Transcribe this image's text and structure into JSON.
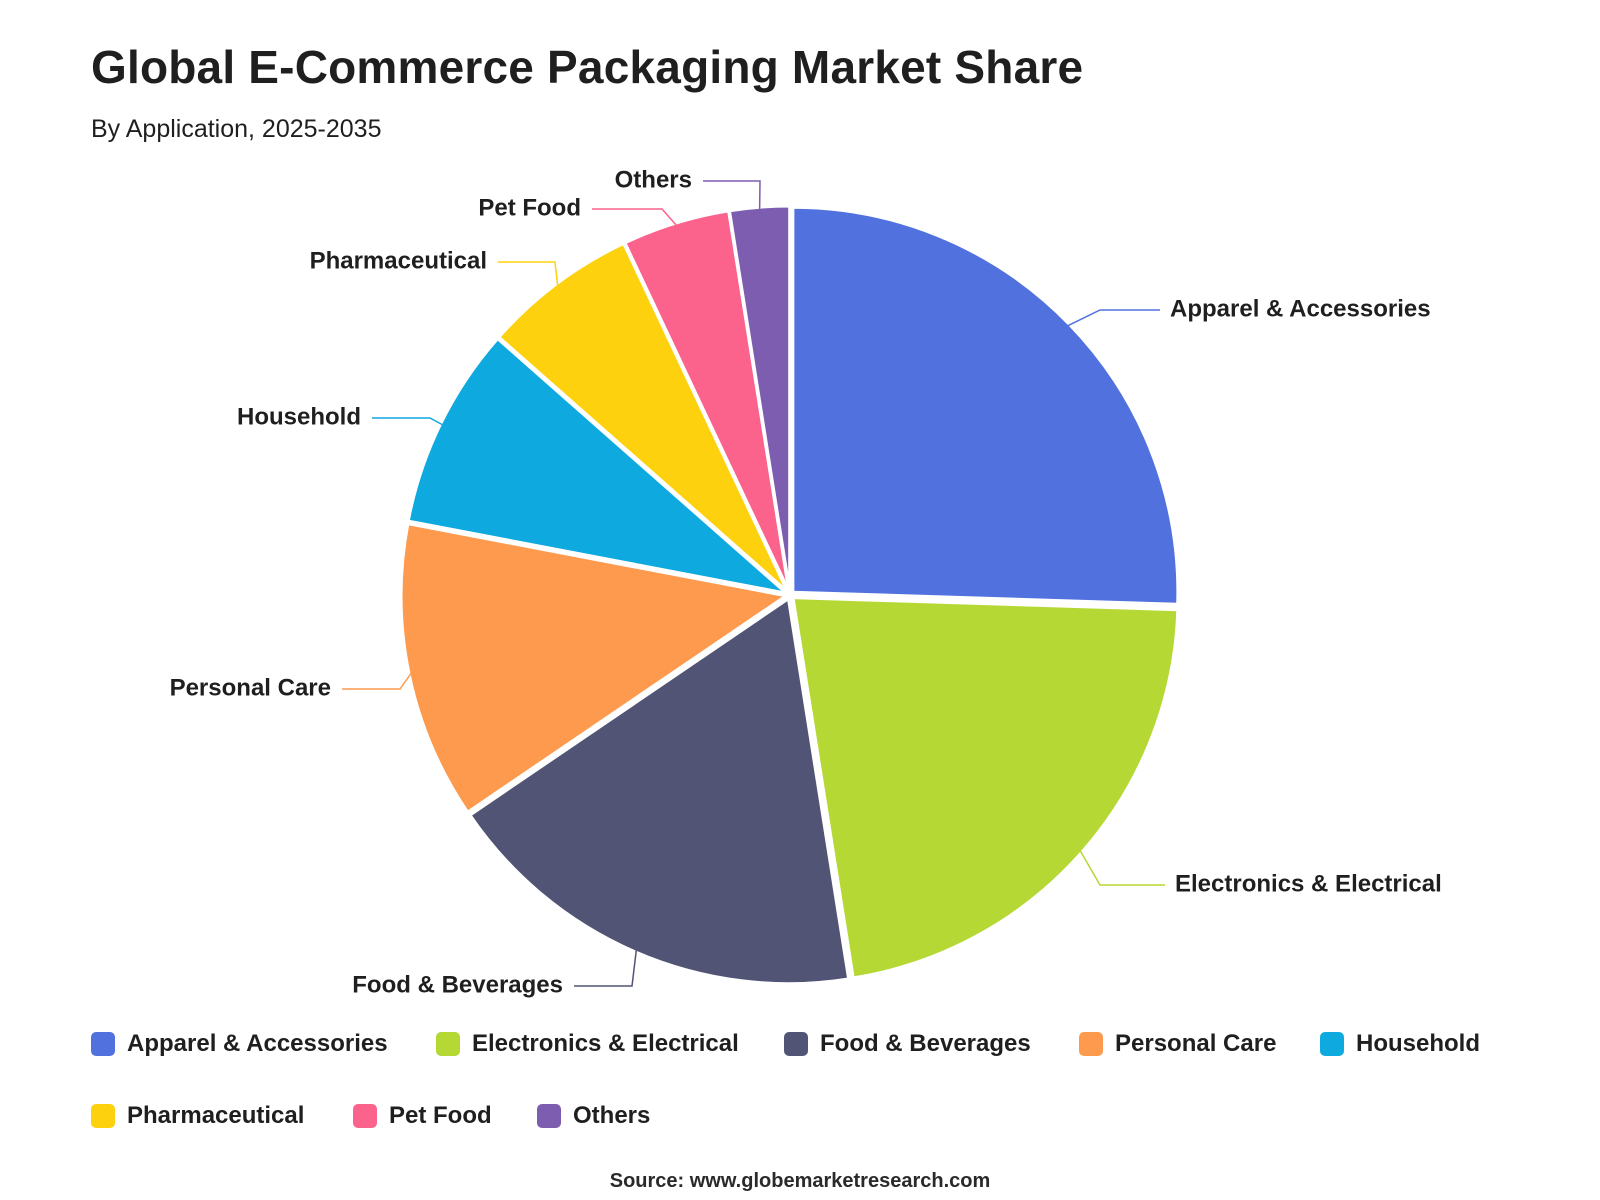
{
  "title": "Global E-Commerce Packaging Market Share",
  "subtitle": "By Application, 2025-2035",
  "source": "Source: www.globemarketresearch.com",
  "chart_data": {
    "type": "pie",
    "title": "Global E-Commerce Packaging Market Share",
    "subtitle": "By Application, 2025-2035",
    "legend_position": "bottom",
    "categories": [
      "Apparel & Accessories",
      "Electronics & Electrical",
      "Food & Beverages",
      "Personal Care",
      "Household",
      "Pharmaceutical",
      "Pet Food",
      "Others"
    ],
    "values": [
      25.5,
      22,
      18,
      12.5,
      8.5,
      6.5,
      4.5,
      2.5
    ],
    "colors": [
      "#5171de",
      "#b5d834",
      "#515474",
      "#fd9a4e",
      "#0ea9df",
      "#fed10e",
      "#fb628c",
      "#7c5db0"
    ]
  }
}
